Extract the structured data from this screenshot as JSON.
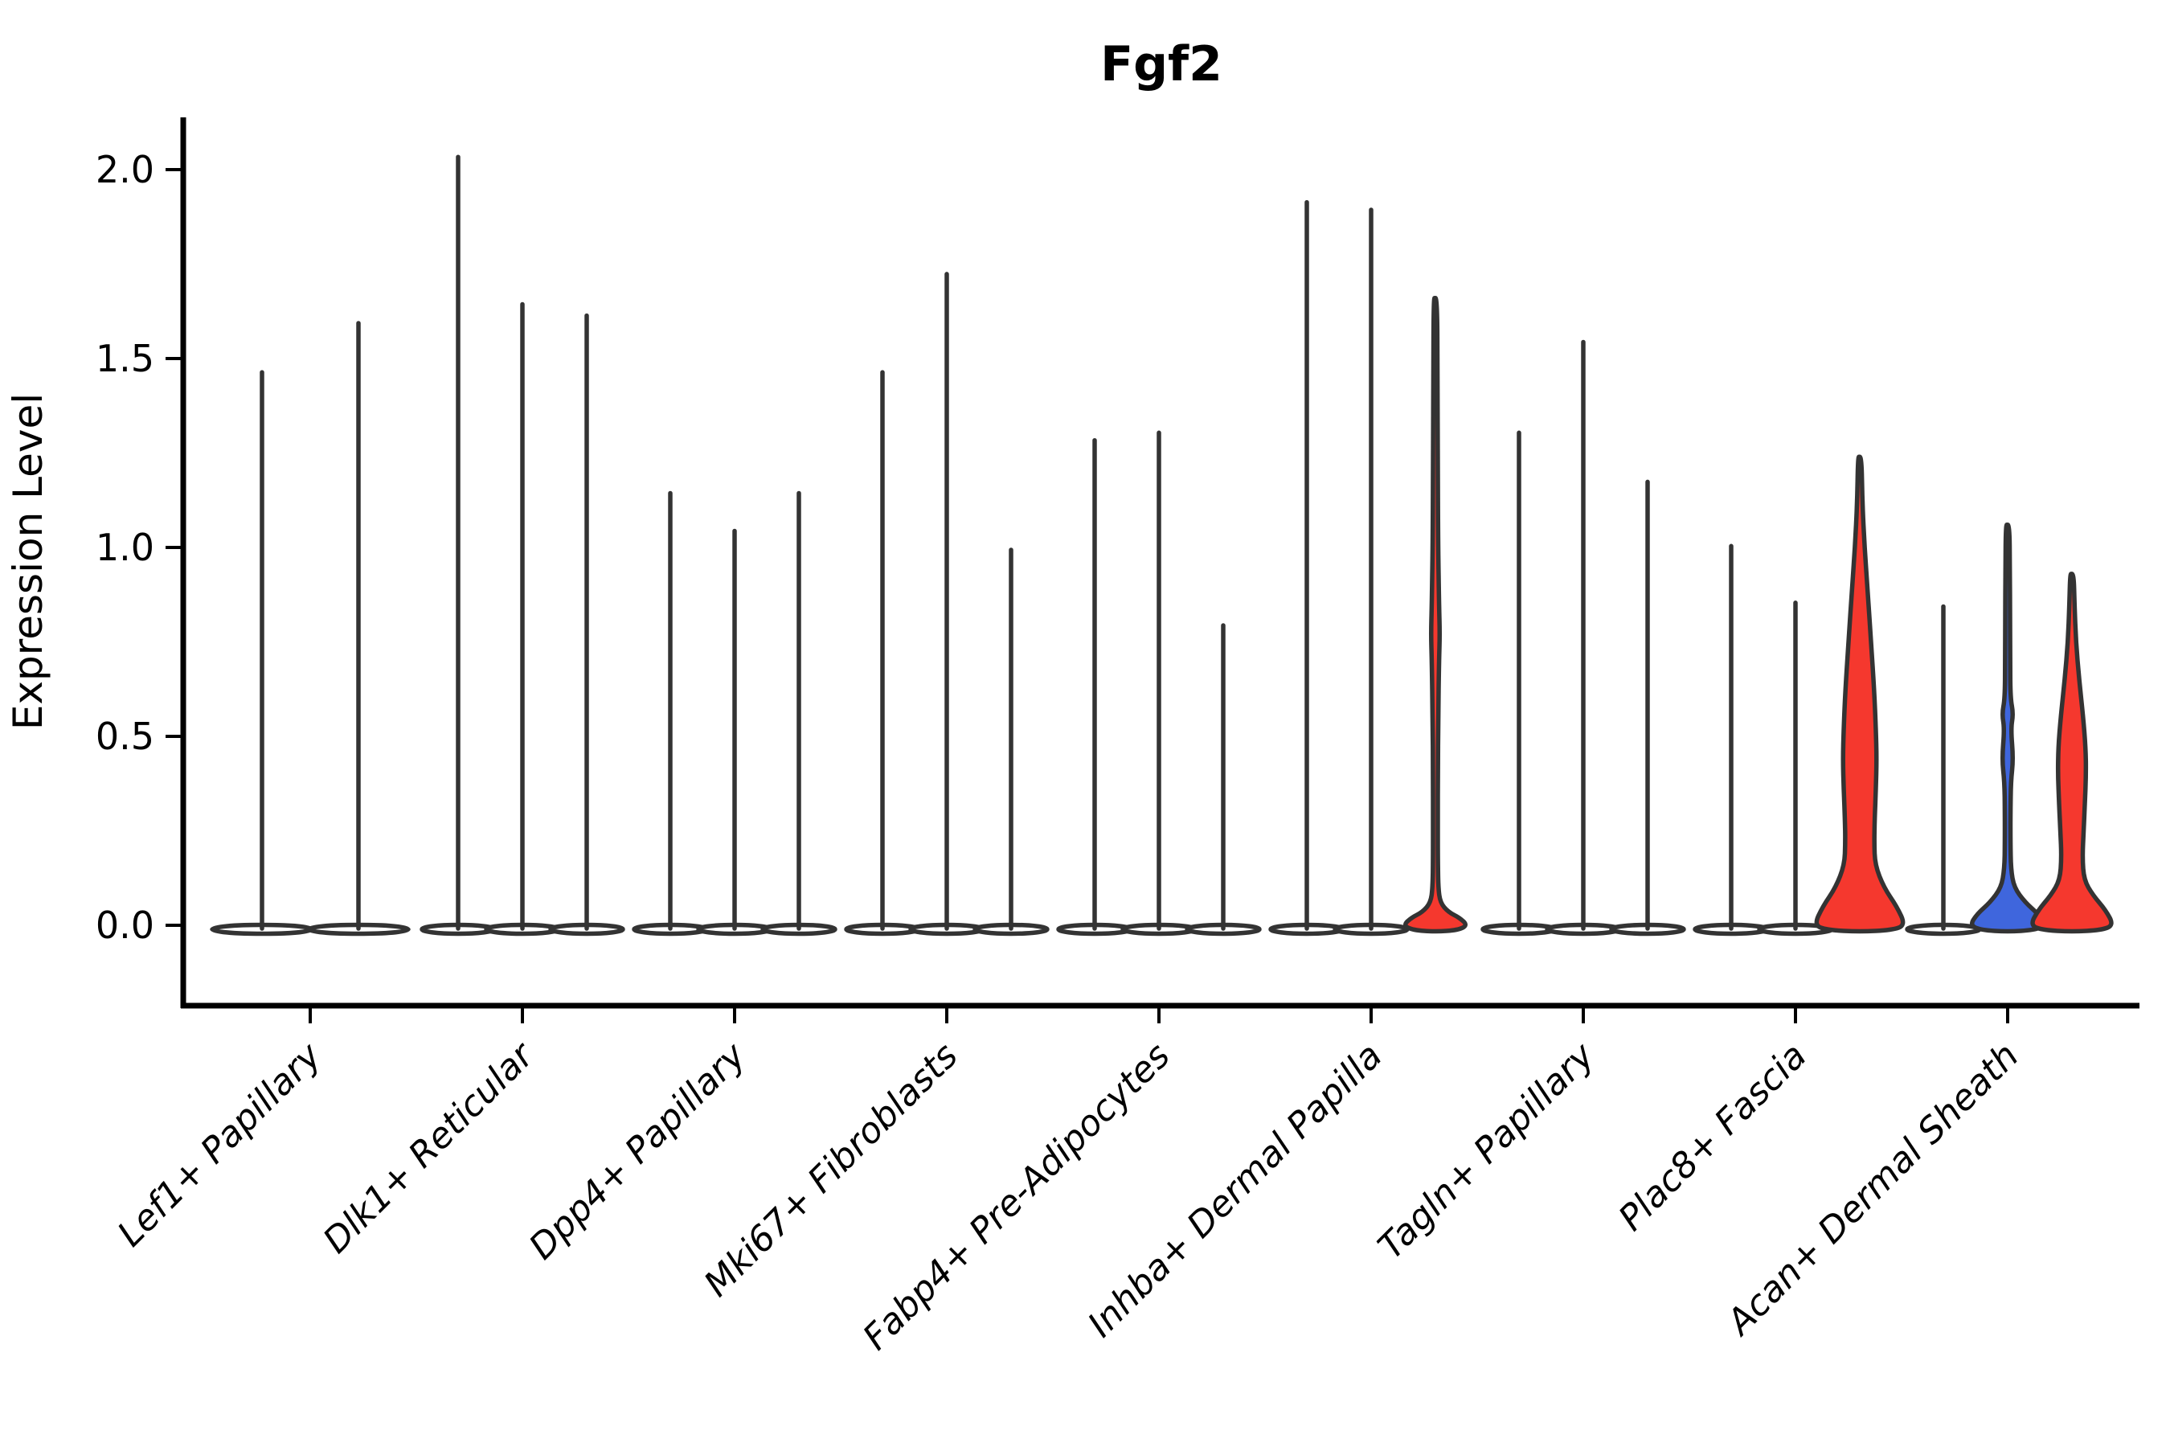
{
  "title": "Fgf2",
  "ylabel": "Expression Level",
  "chart_data": {
    "type": "violin",
    "title": "Fgf2",
    "subtitle": "",
    "xlabel": "",
    "ylabel": "Expression Level",
    "ylim": [
      -0.21,
      2.14
    ],
    "grid": false,
    "legend_position": "none",
    "yticks": [
      {
        "value": 0.0,
        "label": "0.0"
      },
      {
        "value": 0.5,
        "label": "0.5"
      },
      {
        "value": 1.0,
        "label": "1.0"
      },
      {
        "value": 1.5,
        "label": "1.5"
      },
      {
        "value": 2.0,
        "label": "2.0"
      }
    ],
    "palette": {
      "red": "#f5382e",
      "blue": "#3f66dd",
      "outline": "#333333",
      "axis": "#000000",
      "background": "#ffffff"
    },
    "categories": [
      "Lef1+ Papillary",
      "Dlk1+ Reticular",
      "Dpp4+ Papillary",
      "Mki67+ Fibroblasts",
      "Fabp4+ Pre-Adipocytes",
      "Inhba+ Dermal Papilla",
      "Tagln+ Papillary",
      "Plac8+ Fascia",
      "Acan+ Dermal Sheath"
    ],
    "groups": [
      {
        "category": "Lef1+ Papillary",
        "violins": [
          {
            "tip": 1.47,
            "fill": "none"
          },
          {
            "tip": 1.6,
            "fill": "none"
          }
        ]
      },
      {
        "category": "Dlk1+ Reticular",
        "violins": [
          {
            "tip": 2.04,
            "fill": "none"
          },
          {
            "tip": 1.65,
            "fill": "none"
          },
          {
            "tip": 1.62,
            "fill": "none"
          }
        ]
      },
      {
        "category": "Dpp4+ Papillary",
        "violins": [
          {
            "tip": 1.15,
            "fill": "none"
          },
          {
            "tip": 1.05,
            "fill": "none"
          },
          {
            "tip": 1.15,
            "fill": "none"
          }
        ]
      },
      {
        "category": "Mki67+ Fibroblasts",
        "violins": [
          {
            "tip": 1.47,
            "fill": "none"
          },
          {
            "tip": 1.73,
            "fill": "none"
          },
          {
            "tip": 1.0,
            "fill": "none"
          }
        ]
      },
      {
        "category": "Fabp4+ Pre-Adipocytes",
        "violins": [
          {
            "tip": 1.29,
            "fill": "none"
          },
          {
            "tip": 1.31,
            "fill": "none"
          },
          {
            "tip": 0.8,
            "fill": "none"
          }
        ]
      },
      {
        "category": "Inhba+ Dermal Papilla",
        "violins": [
          {
            "tip": 1.92,
            "fill": "none"
          },
          {
            "tip": 1.9,
            "fill": "none"
          },
          {
            "tip": 1.66,
            "fill": "red",
            "profile": [
              [
                1.66,
                2.2
              ],
              [
                1.45,
                2.6
              ],
              [
                1.2,
                3.0
              ],
              [
                1.0,
                3.4
              ],
              [
                0.85,
                4.5
              ],
              [
                0.77,
                5.5
              ],
              [
                0.7,
                4.5
              ],
              [
                0.55,
                3.5
              ],
              [
                0.4,
                3.0
              ],
              [
                0.28,
                3.0
              ],
              [
                0.18,
                3.0
              ],
              [
                0.1,
                3.5
              ],
              [
                0.06,
                6.0
              ],
              [
                0.035,
                16.0
              ],
              [
                0.02,
                30.0
              ],
              [
                0.0,
                40.0
              ]
            ]
          }
        ]
      },
      {
        "category": "Tagln+ Papillary",
        "violins": [
          {
            "tip": 1.31,
            "fill": "none"
          },
          {
            "tip": 1.55,
            "fill": "none"
          },
          {
            "tip": 1.18,
            "fill": "none"
          }
        ]
      },
      {
        "category": "Plac8+ Fascia",
        "violins": [
          {
            "tip": 1.01,
            "fill": "none"
          },
          {
            "tip": 0.86,
            "fill": "none"
          },
          {
            "tip": 1.24,
            "fill": "red",
            "profile": [
              [
                1.24,
                2.2
              ],
              [
                1.12,
                3.2
              ],
              [
                1.0,
                6.0
              ],
              [
                0.88,
                10.0
              ],
              [
                0.75,
                14.0
              ],
              [
                0.62,
                18.0
              ],
              [
                0.52,
                20.0
              ],
              [
                0.44,
                21.0
              ],
              [
                0.36,
                20.0
              ],
              [
                0.28,
                18.5
              ],
              [
                0.22,
                18.0
              ],
              [
                0.16,
                19.0
              ],
              [
                0.1,
                30.0
              ],
              [
                0.05,
                46.0
              ],
              [
                0.0,
                57.0
              ]
            ]
          }
        ]
      },
      {
        "category": "Acan+ Dermal Sheath",
        "violins": [
          {
            "tip": 0.85,
            "fill": "none"
          },
          {
            "tip": 1.06,
            "fill": "blue",
            "profile": [
              [
                1.06,
                2.2
              ],
              [
                0.95,
                2.8
              ],
              [
                0.8,
                3.0
              ],
              [
                0.7,
                3.2
              ],
              [
                0.6,
                3.5
              ],
              [
                0.56,
                7.0
              ],
              [
                0.52,
                4.0
              ],
              [
                0.44,
                7.0
              ],
              [
                0.38,
                4.0
              ],
              [
                0.3,
                3.5
              ],
              [
                0.22,
                3.5
              ],
              [
                0.15,
                4.0
              ],
              [
                0.1,
                8.0
              ],
              [
                0.06,
                22.0
              ],
              [
                0.03,
                38.0
              ],
              [
                0.0,
                47.0
              ]
            ]
          },
          {
            "tip": 0.93,
            "fill": "red",
            "profile": [
              [
                0.93,
                2.2
              ],
              [
                0.85,
                3.2
              ],
              [
                0.75,
                5.0
              ],
              [
                0.65,
                9.0
              ],
              [
                0.55,
                14.0
              ],
              [
                0.47,
                17.0
              ],
              [
                0.4,
                17.5
              ],
              [
                0.32,
                16.0
              ],
              [
                0.25,
                14.5
              ],
              [
                0.18,
                13.0
              ],
              [
                0.12,
                15.0
              ],
              [
                0.08,
                26.0
              ],
              [
                0.04,
                42.0
              ],
              [
                0.0,
                52.0
              ]
            ]
          }
        ]
      }
    ]
  }
}
